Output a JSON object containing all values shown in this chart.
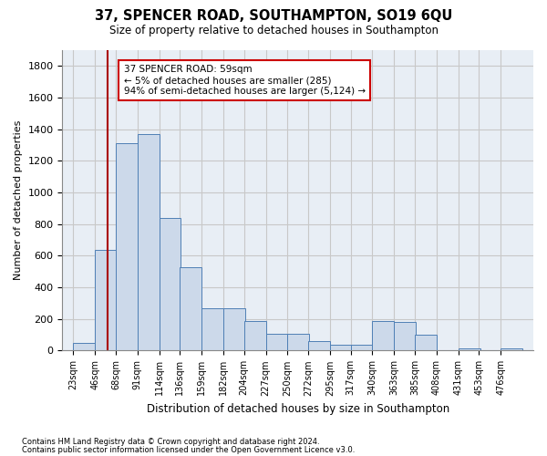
{
  "title": "37, SPENCER ROAD, SOUTHAMPTON, SO19 6QU",
  "subtitle": "Size of property relative to detached houses in Southampton",
  "xlabel": "Distribution of detached houses by size in Southampton",
  "ylabel": "Number of detached properties",
  "categories": [
    "23sqm",
    "46sqm",
    "68sqm",
    "91sqm",
    "114sqm",
    "136sqm",
    "159sqm",
    "182sqm",
    "204sqm",
    "227sqm",
    "250sqm",
    "272sqm",
    "295sqm",
    "317sqm",
    "340sqm",
    "363sqm",
    "385sqm",
    "408sqm",
    "431sqm",
    "453sqm",
    "476sqm"
  ],
  "values": [
    50,
    635,
    1310,
    1370,
    840,
    530,
    270,
    270,
    185,
    105,
    105,
    60,
    35,
    35,
    185,
    180,
    100,
    0,
    15,
    0,
    15
  ],
  "bar_color": "#ccd9ea",
  "bar_edge_color": "#4f7fb5",
  "ylim": [
    0,
    1900
  ],
  "yticks": [
    0,
    200,
    400,
    600,
    800,
    1000,
    1200,
    1400,
    1600,
    1800
  ],
  "property_line_label": "37 SPENCER ROAD: 59sqm",
  "annotation_line1": "← 5% of detached houses are smaller (285)",
  "annotation_line2": "94% of semi-detached houses are larger (5,124) →",
  "annotation_box_color": "#cc0000",
  "vline_color": "#aa0000",
  "grid_color": "#c8c8c8",
  "footnote1": "Contains HM Land Registry data © Crown copyright and database right 2024.",
  "footnote2": "Contains public sector information licensed under the Open Government Licence v3.0.",
  "background_color": "#e8eef5"
}
